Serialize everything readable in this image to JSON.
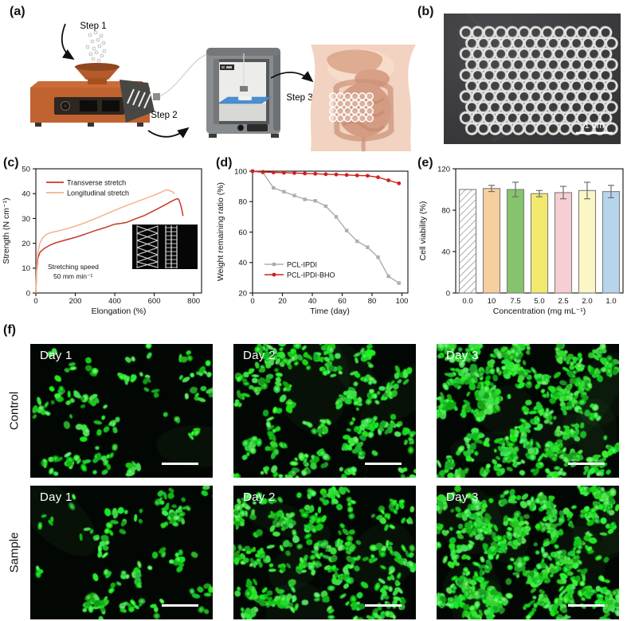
{
  "figure": {
    "panel_labels": {
      "a": "(a)",
      "b": "(b)",
      "c": "(c)",
      "d": "(d)",
      "e": "(e)",
      "f": "(f)"
    }
  },
  "panel_a": {
    "steps": [
      "Step 1",
      "Step 2",
      "Step 3"
    ],
    "machine_color": "#c06330",
    "printer_color": "#8b8e90",
    "bed_color": "#4a8fd3"
  },
  "panel_b": {
    "scale_label": "1 cm",
    "background_color": "#404043",
    "mesh_rows": 10,
    "mesh_cols": 13
  },
  "chart_data": [
    {
      "id": "c",
      "type": "line",
      "xlabel": "Elongation (%)",
      "ylabel": "Strength (N cm⁻¹)",
      "xlim": [
        0,
        840
      ],
      "ylim": [
        0,
        50
      ],
      "xticks": [
        0,
        200,
        400,
        600,
        800
      ],
      "yticks": [
        0,
        10,
        20,
        30,
        40,
        50
      ],
      "annotation": [
        "Stretching speed",
        "50 mm min⁻¹"
      ],
      "legend_position": "top-left",
      "inset": "stretched-mesh-photo",
      "series": [
        {
          "name": "Transverse stretch",
          "color": "#c43a28",
          "points": [
            [
              0,
              0
            ],
            [
              4,
              9
            ],
            [
              10,
              14
            ],
            [
              20,
              16.3
            ],
            [
              40,
              17.8
            ],
            [
              70,
              19.2
            ],
            [
              100,
              20.2
            ],
            [
              150,
              21.3
            ],
            [
              200,
              22.4
            ],
            [
              250,
              23.7
            ],
            [
              300,
              25.1
            ],
            [
              350,
              26.3
            ],
            [
              400,
              27.7
            ],
            [
              430,
              28
            ],
            [
              460,
              28.4
            ],
            [
              500,
              29.7
            ],
            [
              550,
              31.2
            ],
            [
              600,
              33.2
            ],
            [
              650,
              35.3
            ],
            [
              685,
              36.8
            ],
            [
              705,
              37.6
            ],
            [
              718,
              38
            ],
            [
              725,
              37.6
            ],
            [
              733,
              35.8
            ],
            [
              741,
              33.2
            ],
            [
              746,
              31
            ]
          ]
        },
        {
          "name": "Longitudinal stretch",
          "color": "#f5b18c",
          "points": [
            [
              0,
              0
            ],
            [
              4,
              11
            ],
            [
              10,
              16.5
            ],
            [
              20,
              20
            ],
            [
              35,
              22.3
            ],
            [
              55,
              23.7
            ],
            [
              80,
              24.4
            ],
            [
              120,
              25.1
            ],
            [
              160,
              25.9
            ],
            [
              200,
              26.9
            ],
            [
              250,
              28.3
            ],
            [
              300,
              29.9
            ],
            [
              350,
              31.6
            ],
            [
              400,
              33.3
            ],
            [
              450,
              34.9
            ],
            [
              500,
              36.4
            ],
            [
              550,
              37.9
            ],
            [
              600,
              39.4
            ],
            [
              630,
              40.4
            ],
            [
              652,
              41.2
            ],
            [
              665,
              41.5
            ],
            [
              678,
              41.2
            ],
            [
              692,
              40.8
            ],
            [
              703,
              39.8
            ]
          ]
        }
      ]
    },
    {
      "id": "d",
      "type": "line",
      "xlabel": "Time (day)",
      "ylabel": "Weight remaining ratio (%)",
      "xlim": [
        0,
        104
      ],
      "ylim": [
        20,
        100
      ],
      "xticks": [
        0,
        20,
        40,
        60,
        80,
        100
      ],
      "yticks": [
        20,
        40,
        60,
        80,
        100
      ],
      "legend_position": "bottom-left",
      "x": [
        0,
        7,
        14,
        21,
        28,
        35,
        42,
        49,
        56,
        63,
        70,
        77,
        84,
        91,
        98
      ],
      "series": [
        {
          "name": "PCL-IPDI",
          "color": "#a9b2a6",
          "marker": "square",
          "values": [
            100,
            99,
            89,
            86.5,
            84,
            81.5,
            80.5,
            77,
            70,
            61,
            54,
            50,
            43.5,
            31,
            26.5
          ]
        },
        {
          "name": "PCL-IPDI-BHO",
          "color": "#cf201c",
          "marker": "circle",
          "values": [
            100,
            99.5,
            99.2,
            99,
            98.8,
            98.5,
            98.3,
            98,
            97.8,
            97.5,
            97.2,
            97,
            96,
            94,
            92
          ]
        }
      ]
    },
    {
      "id": "e",
      "type": "bar",
      "xlabel": "Concentration (mg mL⁻¹)",
      "ylabel": "Cell viability (%)",
      "ylim": [
        0,
        120
      ],
      "yticks": [
        0,
        40,
        80,
        120
      ],
      "categories": [
        "0.0",
        "10",
        "7.5",
        "5.0",
        "2.5",
        "2.0",
        "1.0"
      ],
      "values": [
        100,
        101,
        100,
        96,
        97,
        99,
        98
      ],
      "errors": [
        0,
        3,
        7,
        3,
        6,
        8,
        6
      ],
      "colors": [
        "hatch",
        "#f6cf9f",
        "#85c46c",
        "#f2ea6e",
        "#f7ced4",
        "#fbf7c4",
        "#b7d4ed"
      ],
      "bar_border": "#7e7e7e"
    }
  ],
  "panel_f": {
    "row_labels": [
      "Control",
      "Sample"
    ],
    "tiles": [
      {
        "label": "Day 1",
        "row": "Control",
        "density": 150,
        "seed": 11
      },
      {
        "label": "Day 2",
        "row": "Control",
        "density": 400,
        "seed": 22
      },
      {
        "label": "Day 3",
        "row": "Control",
        "density": 760,
        "seed": 33
      },
      {
        "label": "Day 1",
        "row": "Sample",
        "density": 165,
        "seed": 44
      },
      {
        "label": "Day 2",
        "row": "Sample",
        "density": 450,
        "seed": 55
      },
      {
        "label": "Day 3",
        "row": "Sample",
        "density": 830,
        "seed": 66
      }
    ]
  }
}
